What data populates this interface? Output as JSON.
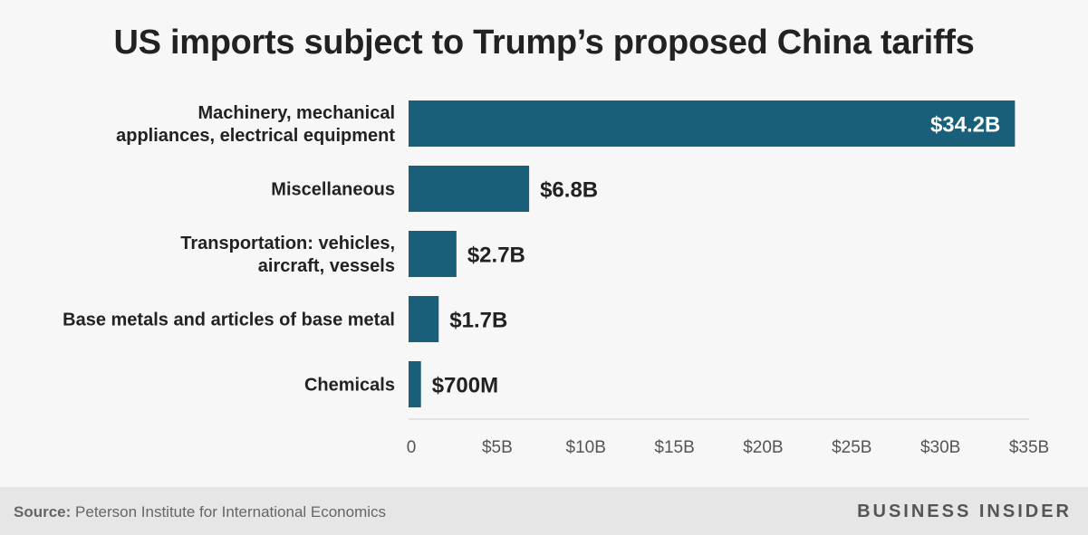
{
  "title": "US imports subject to Trump’s proposed China tariffs",
  "chart_data": {
    "type": "bar",
    "orientation": "horizontal",
    "title": "US imports subject to Trump’s proposed China tariffs",
    "categories": [
      [
        "Machinery, mechanical",
        "appliances, electrical equipment"
      ],
      [
        "Miscellaneous"
      ],
      [
        "Transportation: vehicles,",
        "aircraft, vessels"
      ],
      [
        "Base metals and articles of base metal"
      ],
      [
        "Chemicals"
      ]
    ],
    "values": [
      34.2,
      6.8,
      2.7,
      1.7,
      0.7
    ],
    "value_labels": [
      "$34.2B",
      "$6.8B",
      "$2.7B",
      "$1.7B",
      "$700M"
    ],
    "unit": "billions USD",
    "xlim": [
      0,
      35
    ],
    "xticks": [
      0,
      5,
      10,
      15,
      20,
      25,
      30,
      35
    ],
    "xtick_labels": [
      "0",
      "$5B",
      "$10B",
      "$15B",
      "$20B",
      "$25B",
      "$30B",
      "$35B"
    ],
    "bar_color": "#1a5f7a",
    "grid": false
  },
  "footer": {
    "source_label": "Source:",
    "source_text": " Peterson Institute for International Economics",
    "brand": "BUSINESS INSIDER"
  }
}
